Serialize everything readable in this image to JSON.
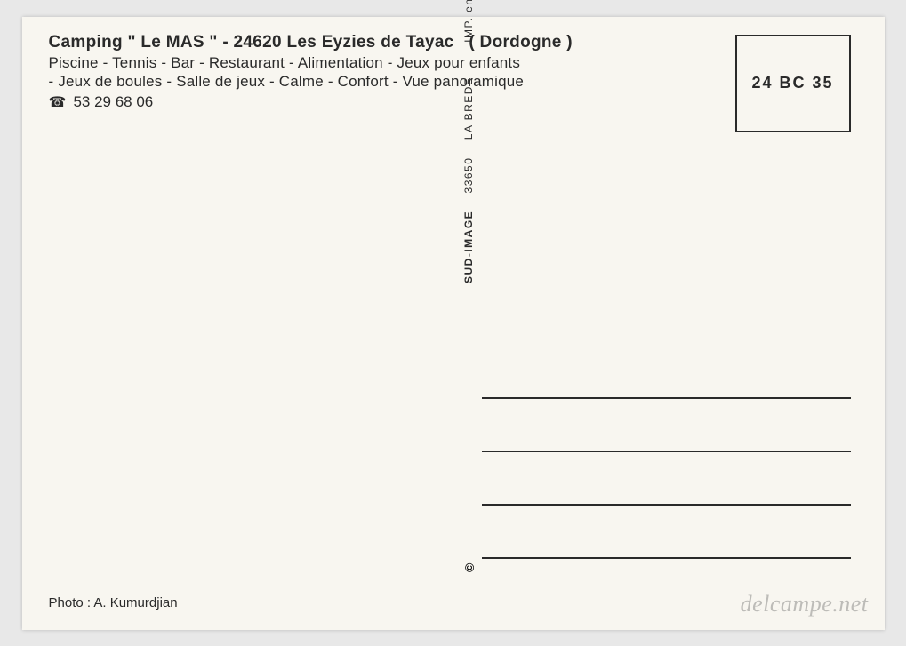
{
  "header": {
    "title_prefix": "Camping",
    "title_name": "\" Le MAS \"",
    "title_sep": " - ",
    "postal": "24620",
    "locality": "Les Eyzies de Tayac",
    "region": "( Dordogne )",
    "desc1": "Piscine - Tennis - Bar - Restaurant - Alimentation - Jeux pour enfants",
    "desc2": "- Jeux de boules - Salle de jeux - Calme - Confort - Vue panoramique",
    "phone": "53 29 68 06"
  },
  "stamp": {
    "code": "24 BC 35"
  },
  "publisher": {
    "copyright": "©",
    "name": "SUD-IMAGE",
    "postal": "33650",
    "city": "LA BREDE",
    "imp": "IMP. en CEE"
  },
  "photo_credit": "Photo : A. Kumurdjian",
  "watermark": "delcampe.net",
  "colors": {
    "card_bg": "#f8f6f0",
    "text": "#2a2a2a",
    "page_bg": "#e8e8e8"
  }
}
